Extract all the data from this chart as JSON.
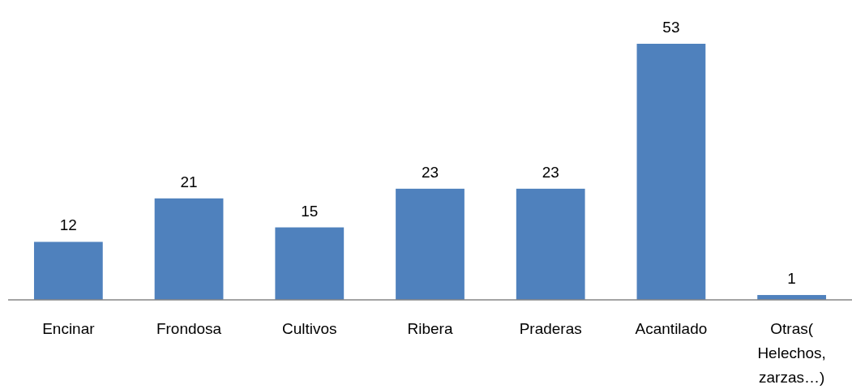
{
  "chart_data": {
    "type": "bar",
    "categories": [
      "Encinar",
      "Frondosa",
      "Cultivos",
      "Ribera",
      "Praderas",
      "Acantilado",
      "Otras( Helechos, zarzas…)"
    ],
    "values": [
      12,
      21,
      15,
      23,
      23,
      53,
      1
    ],
    "color": "#4f81bd",
    "data_labels": true
  }
}
